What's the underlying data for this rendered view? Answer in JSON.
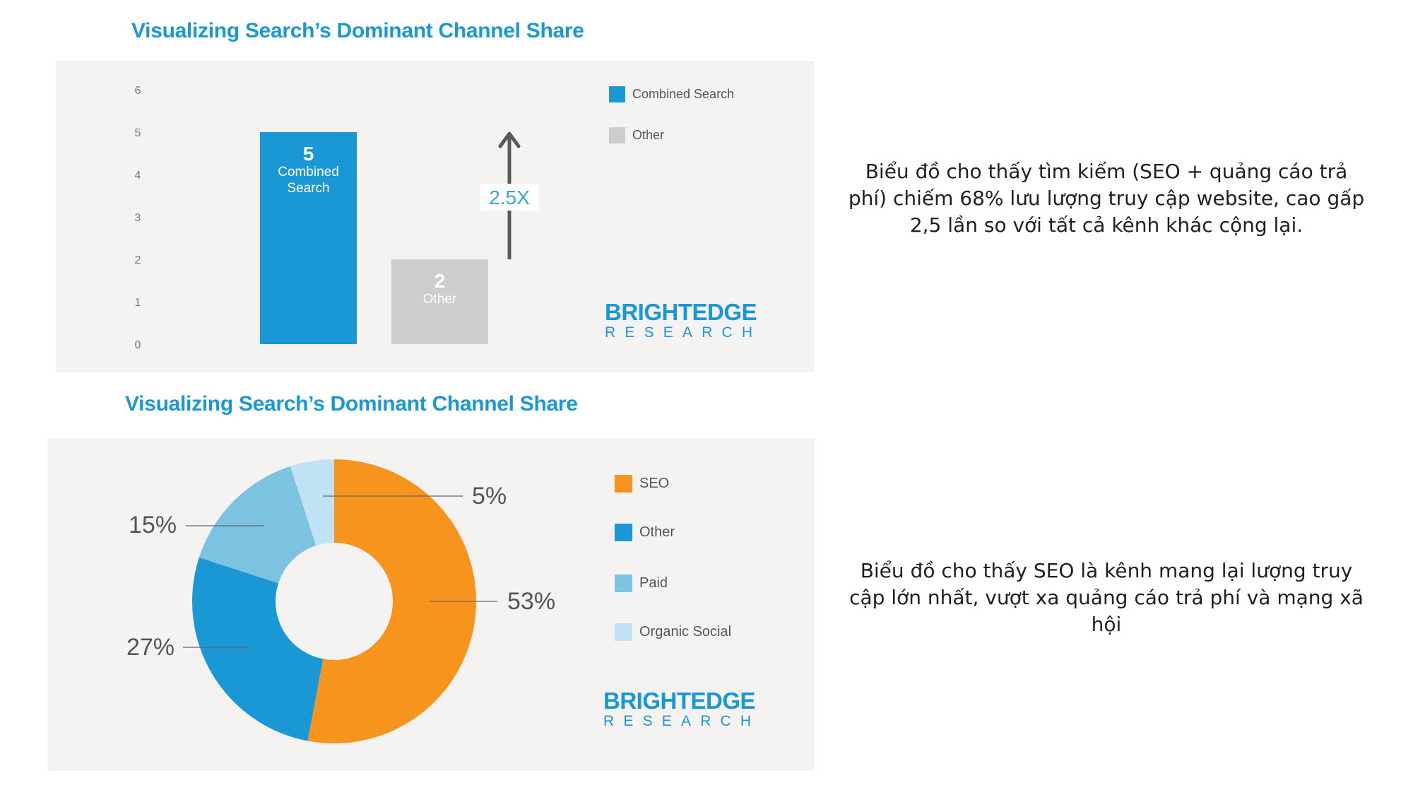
{
  "charts": [
    {
      "title": "Visualizing Search’s Dominant Channel Share",
      "legend": [
        {
          "label": "Combined Search",
          "color": "#1a97d5"
        },
        {
          "label": "Other",
          "color": "#cdcdcd"
        }
      ],
      "brand": {
        "top": "BRIGHTEDGE",
        "bottom": "RESEARCH"
      },
      "multiplier_label": "2.5X",
      "description": "Biểu đồ cho thấy tìm kiếm (SEO + quảng cáo trả phí) chiếm 68% lưu lượng truy cập website, cao gấp 2,5 lần so với tất cả kênh khác cộng lại."
    },
    {
      "title": "Visualizing Search’s Dominant Channel Share",
      "legend": [
        {
          "label": "SEO",
          "color": "#f7941e"
        },
        {
          "label": "Other",
          "color": "#1a97d5"
        },
        {
          "label": "Paid",
          "color": "#7cc3e1"
        },
        {
          "label": "Organic Social",
          "color": "#bfe3f4"
        }
      ],
      "brand": {
        "top": "BRIGHTEDGE",
        "bottom": "RESEARCH"
      },
      "description": "Biểu đồ cho thấy SEO là kênh mang lại lượng truy cập lớn nhất, vượt xa quảng cáo trả phí và mạng xã hội"
    }
  ],
  "chart_data": [
    {
      "type": "bar",
      "title": "Visualizing Search’s Dominant Channel Share",
      "categories": [
        "Combined Search",
        "Other"
      ],
      "values": [
        5,
        2
      ],
      "bar_labels": [
        {
          "value": "5",
          "name": "Combined",
          "name2": "Search"
        },
        {
          "value": "2",
          "name": "Other",
          "name2": ""
        }
      ],
      "colors": [
        "#1a97d5",
        "#cdcdcd"
      ],
      "yticks": [
        "0",
        "1",
        "2",
        "3",
        "4",
        "5",
        "6"
      ],
      "ylim": [
        0,
        6
      ],
      "xlabel": "",
      "ylabel": "",
      "legend_position": "top-right",
      "annotation": "2.5X"
    },
    {
      "type": "pie",
      "title": "Visualizing Search’s Dominant Channel Share",
      "donut": true,
      "slices": [
        {
          "label": "SEO",
          "value": 53,
          "text": "53%",
          "color": "#f7941e"
        },
        {
          "label": "Other",
          "value": 27,
          "text": "27%",
          "color": "#1a97d5"
        },
        {
          "label": "Paid",
          "value": 15,
          "text": "15%",
          "color": "#7cc3e1"
        },
        {
          "label": "Organic Social",
          "value": 5,
          "text": "5%",
          "color": "#bfe3f4"
        }
      ],
      "legend_position": "right"
    }
  ]
}
